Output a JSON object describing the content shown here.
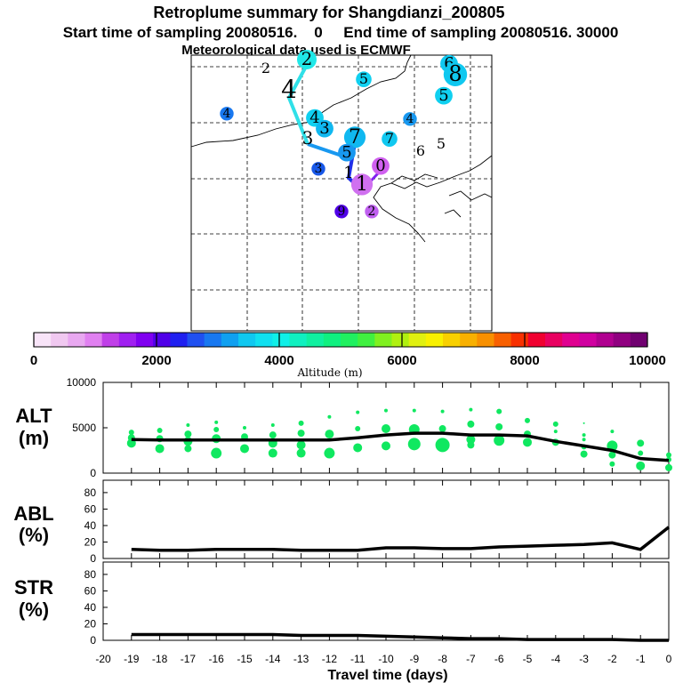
{
  "title": {
    "line1": "Retroplume summary for Shangdianzi_200805",
    "line2": "Start time of sampling 20080516.    0     End time of sampling 20080516. 30000",
    "line3": "Meteorological data used is ECMWF"
  },
  "colorbar": {
    "ticks": [
      "0",
      "2000",
      "4000",
      "6000",
      "8000",
      "10000"
    ],
    "label": "Altitude (m)",
    "colors": [
      "#f8e4f8",
      "#f0c8f0",
      "#e8a8f0",
      "#e080f0",
      "#c040e8",
      "#a020f0",
      "#8000f0",
      "#5000e8",
      "#2020f0",
      "#2050f0",
      "#1878f0",
      "#10a0f0",
      "#10c8f0",
      "#10e0f0",
      "#10f0e8",
      "#10f0c0",
      "#10f0a0",
      "#10f080",
      "#20f060",
      "#40f040",
      "#80f020",
      "#b0f010",
      "#e0f010",
      "#f8f000",
      "#f8d000",
      "#f8b000",
      "#f89000",
      "#f86000",
      "#f83000",
      "#f00030",
      "#e80060",
      "#e00090",
      "#d000a0",
      "#b00090",
      "#900080",
      "#700070"
    ]
  },
  "map": {
    "trajectory_labels": [
      {
        "t": "2",
        "x": 299,
        "y": 82,
        "s": 16,
        "c": null
      },
      {
        "t": "2",
        "x": 345,
        "y": 73,
        "s": 20,
        "c": "#20e8e8"
      },
      {
        "t": "5",
        "x": 409,
        "y": 94,
        "s": 16,
        "c": "#10d0f0"
      },
      {
        "t": "6",
        "x": 505,
        "y": 77,
        "s": 18,
        "c": "#10c8f0"
      },
      {
        "t": "8",
        "x": 512,
        "y": 91,
        "s": 24,
        "c": "#10c8f0"
      },
      {
        "t": "5",
        "x": 499,
        "y": 113,
        "s": 18,
        "c": "#10d0f0"
      },
      {
        "t": "4",
        "x": 255,
        "y": 132,
        "s": 14,
        "c": "#1878f0"
      },
      {
        "t": "4",
        "x": 325,
        "y": 110,
        "s": 28,
        "c": null
      },
      {
        "t": "4",
        "x": 354,
        "y": 138,
        "s": 18,
        "c": "#10d0f0"
      },
      {
        "t": "3",
        "x": 365,
        "y": 150,
        "s": 18,
        "c": "#10b8f0"
      },
      {
        "t": "3",
        "x": 346,
        "y": 162,
        "s": 20,
        "c": null
      },
      {
        "t": "4",
        "x": 461,
        "y": 138,
        "s": 14,
        "c": "#1898f0"
      },
      {
        "t": "7",
        "x": 399,
        "y": 161,
        "s": 22,
        "c": "#10b8f0"
      },
      {
        "t": "7",
        "x": 438,
        "y": 161,
        "s": 16,
        "c": "#10c8f0"
      },
      {
        "t": "6",
        "x": 473,
        "y": 175,
        "s": 16,
        "c": null
      },
      {
        "t": "5",
        "x": 496,
        "y": 167,
        "s": 16,
        "c": null
      },
      {
        "t": "5",
        "x": 390,
        "y": 177,
        "s": 18,
        "c": "#1898f0"
      },
      {
        "t": "3",
        "x": 358,
        "y": 194,
        "s": 14,
        "c": "#1858e8"
      },
      {
        "t": "1",
        "x": 392,
        "y": 200,
        "s": 18,
        "c": null
      },
      {
        "t": "0",
        "x": 428,
        "y": 192,
        "s": 18,
        "c": "#d060f0"
      },
      {
        "t": "1",
        "x": 407,
        "y": 214,
        "s": 22,
        "c": "#d070f0"
      },
      {
        "t": "9",
        "x": 384,
        "y": 242,
        "s": 14,
        "c": "#5000e8"
      },
      {
        "t": "2",
        "x": 418,
        "y": 242,
        "s": 14,
        "c": "#c060f0"
      }
    ]
  },
  "chart_data": [
    {
      "type": "line",
      "panel": "ALT",
      "ylabel": "ALT\n(m)",
      "ylabel_line1": "ALT",
      "ylabel_line2": "(m)",
      "xlim": [
        -20,
        0
      ],
      "ylim": [
        0,
        10000
      ],
      "yticks": [
        "0",
        "5000",
        "10000"
      ],
      "x": [
        -19,
        -18,
        -17,
        -16,
        -15,
        -14,
        -13,
        -12,
        -11,
        -10,
        -9,
        -8,
        -7,
        -6,
        -5,
        -4,
        -3,
        -2,
        -1,
        0
      ],
      "series": [
        {
          "name": "mean altitude",
          "color": "#000000",
          "values": [
            3700,
            3650,
            3650,
            3650,
            3650,
            3650,
            3650,
            3650,
            3900,
            4200,
            4400,
            4400,
            4200,
            4200,
            4100,
            3500,
            3000,
            2500,
            1600,
            1400
          ]
        }
      ],
      "scatter_points": [
        {
          "x": -19,
          "y": 4500,
          "s": 3
        },
        {
          "x": -19,
          "y": 3900,
          "s": 4
        },
        {
          "x": -19,
          "y": 3300,
          "s": 5
        },
        {
          "x": -18,
          "y": 4700,
          "s": 3
        },
        {
          "x": -18,
          "y": 3800,
          "s": 4
        },
        {
          "x": -18,
          "y": 2700,
          "s": 5
        },
        {
          "x": -17,
          "y": 5300,
          "s": 2
        },
        {
          "x": -17,
          "y": 4300,
          "s": 4
        },
        {
          "x": -17,
          "y": 3500,
          "s": 5
        },
        {
          "x": -17,
          "y": 2700,
          "s": 4
        },
        {
          "x": -16,
          "y": 5600,
          "s": 2
        },
        {
          "x": -16,
          "y": 4800,
          "s": 3
        },
        {
          "x": -16,
          "y": 3800,
          "s": 5
        },
        {
          "x": -16,
          "y": 2200,
          "s": 6
        },
        {
          "x": -15,
          "y": 5000,
          "s": 2
        },
        {
          "x": -15,
          "y": 4000,
          "s": 4
        },
        {
          "x": -15,
          "y": 2700,
          "s": 5
        },
        {
          "x": -14,
          "y": 5300,
          "s": 2
        },
        {
          "x": -14,
          "y": 4200,
          "s": 4
        },
        {
          "x": -14,
          "y": 3300,
          "s": 5
        },
        {
          "x": -14,
          "y": 2200,
          "s": 5
        },
        {
          "x": -13,
          "y": 5500,
          "s": 3
        },
        {
          "x": -13,
          "y": 4400,
          "s": 4
        },
        {
          "x": -13,
          "y": 3100,
          "s": 5
        },
        {
          "x": -13,
          "y": 2200,
          "s": 5
        },
        {
          "x": -12,
          "y": 6200,
          "s": 2
        },
        {
          "x": -12,
          "y": 4300,
          "s": 5
        },
        {
          "x": -12,
          "y": 2200,
          "s": 6
        },
        {
          "x": -11,
          "y": 6700,
          "s": 2
        },
        {
          "x": -11,
          "y": 4900,
          "s": 3
        },
        {
          "x": -11,
          "y": 2800,
          "s": 5
        },
        {
          "x": -10,
          "y": 6900,
          "s": 2
        },
        {
          "x": -10,
          "y": 4900,
          "s": 5
        },
        {
          "x": -10,
          "y": 3000,
          "s": 5
        },
        {
          "x": -9,
          "y": 6900,
          "s": 2
        },
        {
          "x": -9,
          "y": 4800,
          "s": 6
        },
        {
          "x": -9,
          "y": 3200,
          "s": 7
        },
        {
          "x": -8,
          "y": 6800,
          "s": 2
        },
        {
          "x": -8,
          "y": 4900,
          "s": 4
        },
        {
          "x": -8,
          "y": 3100,
          "s": 8
        },
        {
          "x": -7,
          "y": 7000,
          "s": 2
        },
        {
          "x": -7,
          "y": 5400,
          "s": 4
        },
        {
          "x": -7,
          "y": 3700,
          "s": 5
        },
        {
          "x": -7,
          "y": 3100,
          "s": 4
        },
        {
          "x": -6,
          "y": 6800,
          "s": 3
        },
        {
          "x": -6,
          "y": 5100,
          "s": 4
        },
        {
          "x": -6,
          "y": 3600,
          "s": 6
        },
        {
          "x": -5,
          "y": 5800,
          "s": 3
        },
        {
          "x": -5,
          "y": 4300,
          "s": 4
        },
        {
          "x": -5,
          "y": 3400,
          "s": 5
        },
        {
          "x": -4,
          "y": 5400,
          "s": 3
        },
        {
          "x": -4,
          "y": 4600,
          "s": 2
        },
        {
          "x": -4,
          "y": 3400,
          "s": 4
        },
        {
          "x": -3,
          "y": 5500,
          "s": 1
        },
        {
          "x": -3,
          "y": 4200,
          "s": 2
        },
        {
          "x": -3,
          "y": 3700,
          "s": 2
        },
        {
          "x": -3,
          "y": 2900,
          "s": 3
        },
        {
          "x": -3,
          "y": 2100,
          "s": 4
        },
        {
          "x": -2,
          "y": 4600,
          "s": 2
        },
        {
          "x": -2,
          "y": 3000,
          "s": 6
        },
        {
          "x": -2,
          "y": 2000,
          "s": 4
        },
        {
          "x": -2,
          "y": 1000,
          "s": 3
        },
        {
          "x": -1,
          "y": 3300,
          "s": 4
        },
        {
          "x": -1,
          "y": 2200,
          "s": 3
        },
        {
          "x": -1,
          "y": 800,
          "s": 5
        },
        {
          "x": 0,
          "y": 2000,
          "s": 3
        },
        {
          "x": 0,
          "y": 1500,
          "s": 3
        },
        {
          "x": 0,
          "y": 600,
          "s": 4
        }
      ],
      "scatter_color": "#10e860"
    },
    {
      "type": "line",
      "panel": "ABL",
      "ylabel_line1": "ABL",
      "ylabel_line2": "(%)",
      "xlim": [
        -20,
        0
      ],
      "ylim": [
        0,
        95
      ],
      "yticks": [
        "0",
        "20",
        "40",
        "60",
        "80"
      ],
      "x": [
        -19,
        -18,
        -17,
        -16,
        -15,
        -14,
        -13,
        -12,
        -11,
        -10,
        -9,
        -8,
        -7,
        -6,
        -5,
        -4,
        -3,
        -2,
        -1,
        0
      ],
      "series": [
        {
          "name": "ABL fraction",
          "color": "#000000",
          "values": [
            11,
            10,
            10,
            11,
            11,
            11,
            10,
            10,
            10,
            13,
            13,
            12,
            12,
            14,
            15,
            16,
            17,
            19,
            11,
            38
          ]
        }
      ]
    },
    {
      "type": "line",
      "panel": "STR",
      "ylabel_line1": "STR",
      "ylabel_line2": "(%)",
      "xlim": [
        -20,
        0
      ],
      "ylim": [
        0,
        95
      ],
      "yticks": [
        "0",
        "20",
        "40",
        "60",
        "80"
      ],
      "x": [
        -19,
        -18,
        -17,
        -16,
        -15,
        -14,
        -13,
        -12,
        -11,
        -10,
        -9,
        -8,
        -7,
        -6,
        -5,
        -4,
        -3,
        -2,
        -1,
        0
      ],
      "series": [
        {
          "name": "STR fraction",
          "color": "#000000",
          "values": [
            7,
            7,
            7,
            7,
            7,
            7,
            6,
            6,
            6,
            5,
            4,
            3,
            2,
            2,
            1,
            1,
            1,
            1,
            0,
            0
          ]
        }
      ],
      "xticks": [
        "-20",
        "-19",
        "-18",
        "-17",
        "-16",
        "-15",
        "-14",
        "-13",
        "-12",
        "-11",
        "-10",
        "-9",
        "-8",
        "-7",
        "-6",
        "-5",
        "-4",
        "-3",
        "-2",
        "-1",
        "0"
      ],
      "xlabel": "Travel time (days)"
    }
  ]
}
